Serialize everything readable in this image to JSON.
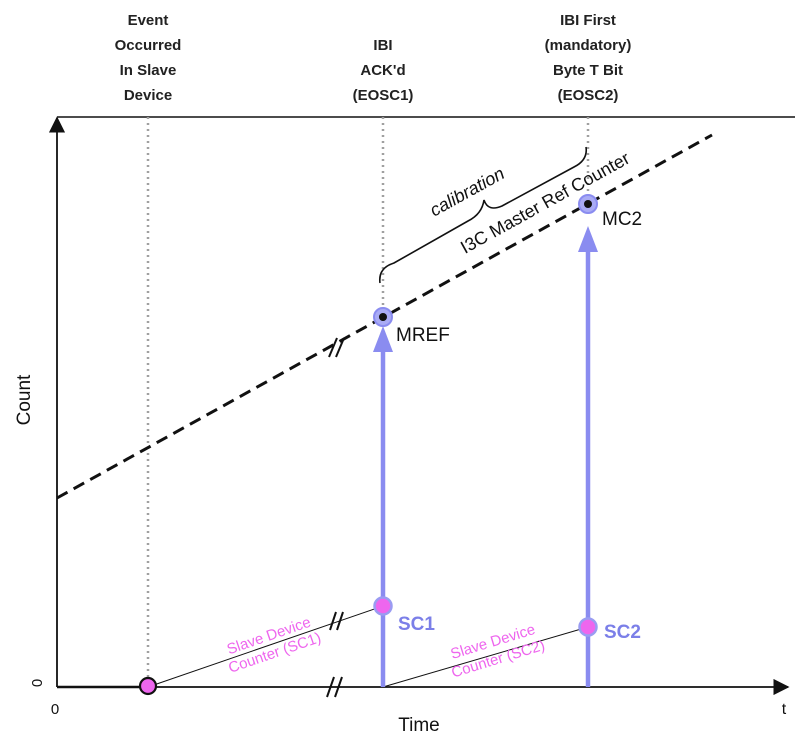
{
  "headers": {
    "event": [
      "Event",
      "Occurred",
      "In Slave",
      "Device"
    ],
    "ibi_ack": [
      "IBI",
      "ACK'd",
      "(EOSC1)"
    ],
    "ibi_first": [
      "IBI First",
      "(mandatory)",
      "Byte T Bit",
      "(EOSC2)"
    ]
  },
  "axes": {
    "y_label": "Count",
    "x_label": "Time",
    "origin_x": "0",
    "origin_y": "0",
    "x_end": "t"
  },
  "labels": {
    "calibration": "calibration",
    "master_counter": "I3C Master Ref Counter",
    "mref": "MREF",
    "mc2": "MC2",
    "sc1": "SC1",
    "sc2": "SC2",
    "slave_counter_1": [
      "Slave Device",
      "Counter (SC1)"
    ],
    "slave_counter_2": [
      "Slave Device",
      "Counter (SC2)"
    ]
  },
  "colors": {
    "arrow": "#8a8cf0",
    "sc_label": "#7b7fe8",
    "pink": "#ee66ee",
    "axis": "#111111",
    "guide": "#a0a0a0"
  }
}
